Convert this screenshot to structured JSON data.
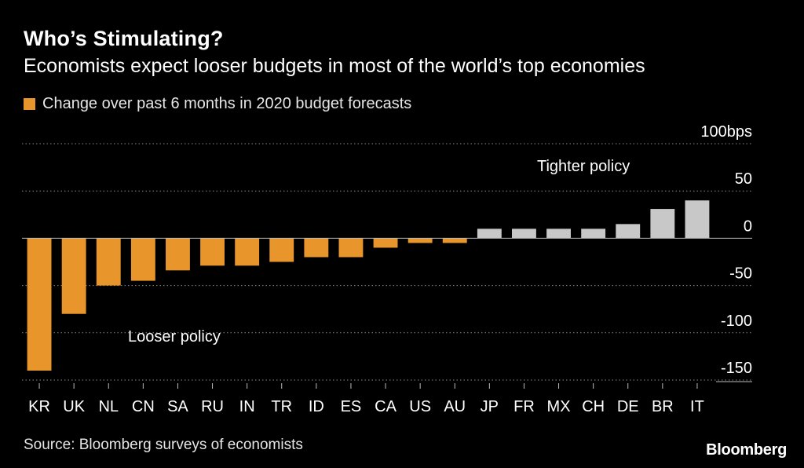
{
  "colors": {
    "background": "#000000",
    "negative": "#e8962b",
    "positive": "#c8c8c8",
    "grid": "#8a8a8a",
    "text": "#ffffff",
    "muted": "#e6e6e6"
  },
  "chart_data": {
    "type": "bar",
    "title": "Who’s Stimulating?",
    "subtitle": "Economists expect looser budgets in most of the world’s top economies",
    "legend": [
      "Change over past 6 months in 2020 budget forecasts"
    ],
    "legend_placement": "top-left",
    "categories": [
      "KR",
      "UK",
      "NL",
      "CN",
      "SA",
      "RU",
      "IN",
      "TR",
      "ID",
      "ES",
      "CA",
      "US",
      "AU",
      "JP",
      "FR",
      "MX",
      "CH",
      "DE",
      "BR",
      "IT"
    ],
    "values": [
      -140,
      -80,
      -50,
      -45,
      -34,
      -29,
      -29,
      -25,
      -20,
      -20,
      -10,
      -5,
      -5,
      10,
      10,
      10,
      10,
      15,
      31,
      40
    ],
    "ylim": [
      -150,
      100
    ],
    "yticks": [
      100,
      50,
      0,
      -50,
      -100,
      -150
    ],
    "ytick_labels": [
      "100bps",
      "50",
      "0",
      "-50",
      "-100",
      "-150"
    ],
    "annotations": [
      {
        "text": "Tighter policy"
      },
      {
        "text": "Looser policy"
      }
    ],
    "grid": true
  },
  "footer": {
    "source": "Source: Bloomberg surveys of economists",
    "brand": "Bloomberg"
  }
}
